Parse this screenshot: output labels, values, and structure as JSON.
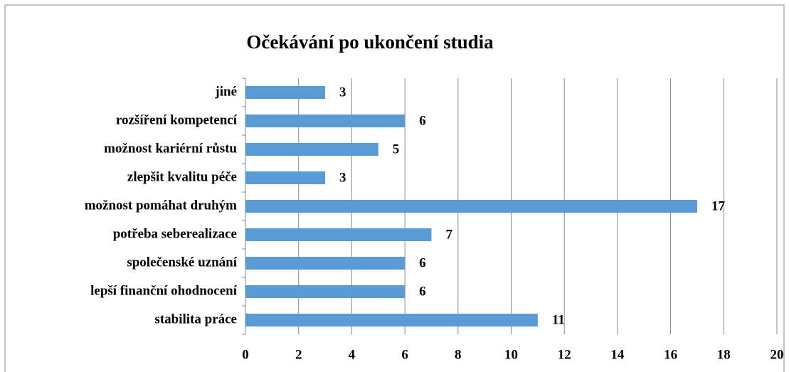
{
  "chart_data": {
    "type": "bar",
    "orientation": "horizontal",
    "title": "Očekávání po ukončení studia",
    "categories": [
      "jiné",
      "rozšíření kompetencí",
      "možnost kariérní růstu",
      "zlepšit kvalitu péče",
      "možnost pomáhat druhým",
      "potřeba seberealizace",
      "společenské uznání",
      "lepší finanční ohodnocení",
      "stabilita práce"
    ],
    "values": [
      3,
      6,
      5,
      3,
      17,
      7,
      6,
      6,
      11
    ],
    "color": "#5b9bd5",
    "xlim": [
      0,
      20
    ],
    "xticks": [
      0,
      2,
      4,
      6,
      8,
      10,
      12,
      14,
      16,
      18,
      20
    ],
    "grid": true
  }
}
